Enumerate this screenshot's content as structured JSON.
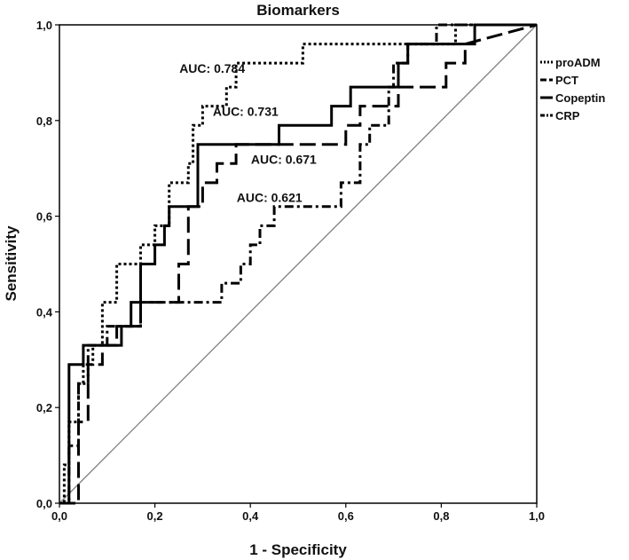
{
  "chart_data": {
    "type": "line",
    "title": "Biomarkers",
    "xlabel": "1 - Specificity",
    "ylabel": "Sensitivity",
    "xlim": [
      0,
      1
    ],
    "ylim": [
      0,
      1
    ],
    "x_ticks": [
      "0,0",
      "0,2",
      "0,4",
      "0,6",
      "0,8",
      "1,0"
    ],
    "y_ticks": [
      "0,0",
      "0,2",
      "0,4",
      "0,6",
      "0,8",
      "1,0"
    ],
    "grid": false,
    "legend_placement": "right",
    "reference_line": {
      "x": [
        0,
        1
      ],
      "y": [
        0,
        1
      ],
      "color": "#808080"
    },
    "series": [
      {
        "name": "proADM",
        "style": "dotted",
        "color": "#000000",
        "auc_label": "AUC: 0.784",
        "x": [
          0,
          0.01,
          0.01,
          0.02,
          0.02,
          0.04,
          0.04,
          0.05,
          0.05,
          0.07,
          0.07,
          0.09,
          0.09,
          0.12,
          0.12,
          0.17,
          0.17,
          0.2,
          0.2,
          0.23,
          0.23,
          0.27,
          0.27,
          0.28,
          0.28,
          0.3,
          0.3,
          0.35,
          0.35,
          0.37,
          0.37,
          0.42,
          0.42,
          0.51,
          0.51,
          0.63,
          0.63,
          0.68,
          0.68,
          0.71,
          0.71,
          0.83,
          0.83,
          0.85,
          0.85,
          1
        ],
        "y": [
          0,
          0,
          0.08,
          0.08,
          0.17,
          0.17,
          0.25,
          0.25,
          0.29,
          0.29,
          0.33,
          0.33,
          0.42,
          0.42,
          0.5,
          0.5,
          0.54,
          0.54,
          0.58,
          0.58,
          0.67,
          0.67,
          0.71,
          0.71,
          0.79,
          0.79,
          0.83,
          0.83,
          0.87,
          0.87,
          0.92,
          0.92,
          0.92,
          0.92,
          0.96,
          0.96,
          0.96,
          0.96,
          0.96,
          0.96,
          0.96,
          0.96,
          1,
          1,
          1,
          1
        ]
      },
      {
        "name": "PCT",
        "style": "dashed",
        "color": "#000000",
        "auc_label": "AUC: 0.731",
        "x": [
          0,
          0.04,
          0.04,
          0.06,
          0.06,
          0.09,
          0.09,
          0.12,
          0.12,
          0.17,
          0.17,
          0.25,
          0.25,
          0.27,
          0.27,
          0.3,
          0.3,
          0.33,
          0.33,
          0.37,
          0.37,
          0.42,
          0.42,
          0.6,
          0.6,
          0.63,
          0.63,
          0.67,
          0.67,
          0.71,
          0.71,
          0.81,
          0.81,
          0.85,
          0.85,
          1
        ],
        "y": [
          0,
          0,
          0.17,
          0.17,
          0.29,
          0.29,
          0.33,
          0.33,
          0.37,
          0.37,
          0.42,
          0.42,
          0.5,
          0.5,
          0.62,
          0.62,
          0.67,
          0.67,
          0.71,
          0.71,
          0.75,
          0.75,
          0.75,
          0.75,
          0.79,
          0.79,
          0.83,
          0.83,
          0.83,
          0.83,
          0.87,
          0.87,
          0.92,
          0.92,
          0.96,
          1
        ]
      },
      {
        "name": "Copeptin",
        "style": "solid",
        "color": "#000000",
        "auc_label": "AUC: 0.671",
        "x": [
          0,
          0.02,
          0.02,
          0.05,
          0.05,
          0.07,
          0.07,
          0.09,
          0.09,
          0.13,
          0.13,
          0.15,
          0.15,
          0.17,
          0.17,
          0.2,
          0.2,
          0.22,
          0.22,
          0.23,
          0.23,
          0.29,
          0.29,
          0.46,
          0.46,
          0.57,
          0.57,
          0.61,
          0.61,
          0.71,
          0.71,
          0.73,
          0.73,
          0.77,
          0.77,
          0.87,
          0.87,
          1
        ],
        "y": [
          0,
          0,
          0.29,
          0.29,
          0.33,
          0.33,
          0.33,
          0.33,
          0.33,
          0.33,
          0.37,
          0.37,
          0.42,
          0.42,
          0.5,
          0.5,
          0.54,
          0.54,
          0.58,
          0.58,
          0.62,
          0.62,
          0.75,
          0.75,
          0.79,
          0.79,
          0.83,
          0.83,
          0.87,
          0.87,
          0.92,
          0.92,
          0.96,
          0.96,
          0.96,
          0.96,
          1,
          1
        ]
      },
      {
        "name": "CRP",
        "style": "dash-dot",
        "color": "#000000",
        "auc_label": "AUC: 0.621",
        "x": [
          0,
          0.02,
          0.02,
          0.04,
          0.04,
          0.06,
          0.06,
          0.1,
          0.1,
          0.17,
          0.17,
          0.34,
          0.34,
          0.38,
          0.38,
          0.4,
          0.4,
          0.42,
          0.42,
          0.45,
          0.45,
          0.47,
          0.47,
          0.59,
          0.59,
          0.63,
          0.63,
          0.65,
          0.65,
          0.69,
          0.69,
          0.7,
          0.7,
          0.73,
          0.73,
          0.79,
          0.79,
          0.82,
          0.82,
          1
        ],
        "y": [
          0,
          0,
          0.12,
          0.12,
          0.25,
          0.25,
          0.33,
          0.33,
          0.37,
          0.37,
          0.42,
          0.42,
          0.46,
          0.46,
          0.5,
          0.5,
          0.54,
          0.54,
          0.58,
          0.58,
          0.62,
          0.62,
          0.62,
          0.62,
          0.67,
          0.67,
          0.75,
          0.75,
          0.79,
          0.79,
          0.87,
          0.87,
          0.92,
          0.92,
          0.96,
          0.96,
          1,
          1,
          1,
          1
        ]
      }
    ]
  }
}
